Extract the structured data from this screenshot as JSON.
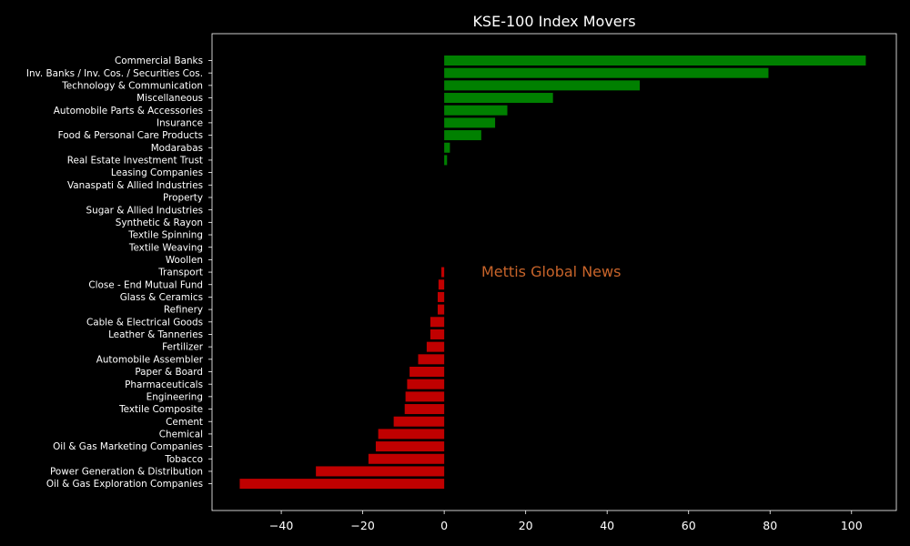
{
  "chart_data": {
    "type": "bar",
    "orientation": "horizontal",
    "title": "KSE-100 Index Movers",
    "watermark": "Mettis Global News",
    "xlabel": "",
    "ylabel": "",
    "xlim": [
      -57,
      111
    ],
    "xticks": [
      -40,
      -20,
      0,
      20,
      40,
      60,
      80,
      100
    ],
    "xtick_labels": [
      "−40",
      "−20",
      "0",
      "20",
      "40",
      "60",
      "80",
      "100"
    ],
    "grid": false,
    "legend": "none",
    "colors": {
      "background": "#000000",
      "positive": "#008000",
      "negative": "#c00000",
      "text": "#ffffff",
      "watermark": "#c8642a"
    },
    "categories": [
      "Commercial Banks",
      "Inv. Banks / Inv. Cos. / Securities Cos.",
      "Technology & Communication",
      "Miscellaneous",
      "Automobile Parts & Accessories",
      "Insurance",
      "Food & Personal Care Products",
      "Modarabas",
      "Real Estate Investment Trust",
      "Leasing Companies",
      "Vanaspati & Allied Industries",
      "Property",
      "Sugar & Allied Industries",
      "Synthetic & Rayon",
      "Textile Spinning",
      "Textile Weaving",
      "Woollen",
      "Transport",
      "Close - End Mutual Fund",
      "Glass & Ceramics",
      "Refinery",
      "Cable & Electrical Goods",
      "Leather & Tanneries",
      "Fertilizer",
      "Automobile Assembler",
      "Paper & Board",
      "Pharmaceuticals",
      "Engineering",
      "Textile Composite",
      "Cement",
      "Chemical",
      "Oil & Gas Marketing Companies",
      "Tobacco",
      "Power Generation & Distribution",
      "Oil & Gas Exploration Companies"
    ],
    "values": [
      103.5,
      79.6,
      48.0,
      26.7,
      15.5,
      12.5,
      9.1,
      1.4,
      0.7,
      0,
      0,
      0,
      0,
      0,
      0,
      0,
      0,
      -0.7,
      -1.4,
      -1.6,
      -1.6,
      -3.4,
      -3.4,
      -4.3,
      -6.4,
      -8.5,
      -9.1,
      -9.5,
      -9.7,
      -12.4,
      -16.2,
      -16.8,
      -18.6,
      -31.5,
      -50.2
    ]
  }
}
